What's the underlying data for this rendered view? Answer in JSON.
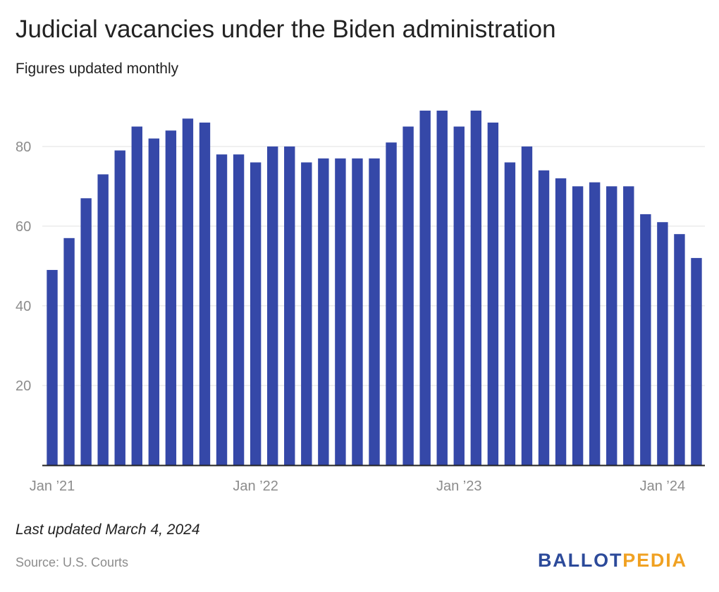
{
  "header": {
    "title": "Judicial vacancies under the Biden administration",
    "subtitle": "Figures updated monthly"
  },
  "footer": {
    "updated": "Last updated March 4, 2024",
    "source": "Source: U.S. Courts",
    "logo_part1": "BALLOT",
    "logo_part2": "PEDIA"
  },
  "colors": {
    "bar": "#3548a8",
    "grid": "#e2e2e2",
    "axis": "#222222",
    "tick_text": "#8c8c8c",
    "logo_blue": "#2c4a9a",
    "logo_gold": "#f0a122"
  },
  "chart_data": {
    "type": "bar",
    "title": "Judicial vacancies under the Biden administration",
    "subtitle": "Figures updated monthly",
    "x_tick_labels": [
      {
        "index": 0,
        "label": "Jan ’21"
      },
      {
        "index": 12,
        "label": "Jan ’22"
      },
      {
        "index": 24,
        "label": "Jan ’23"
      },
      {
        "index": 36,
        "label": "Jan ’24"
      }
    ],
    "y_ticks": [
      20,
      40,
      60,
      80
    ],
    "ylim": [
      0,
      92
    ],
    "grid": true,
    "categories": [
      "2021-01",
      "2021-02",
      "2021-03",
      "2021-04",
      "2021-05",
      "2021-06",
      "2021-07",
      "2021-08",
      "2021-09",
      "2021-10",
      "2021-11",
      "2021-12",
      "2022-01",
      "2022-02",
      "2022-03",
      "2022-04",
      "2022-05",
      "2022-06",
      "2022-07",
      "2022-08",
      "2022-09",
      "2022-10",
      "2022-11",
      "2022-12",
      "2023-01",
      "2023-02",
      "2023-03",
      "2023-04",
      "2023-05",
      "2023-06",
      "2023-07",
      "2023-08",
      "2023-09",
      "2023-10",
      "2023-11",
      "2023-12",
      "2024-01",
      "2024-02",
      "2024-03"
    ],
    "values": [
      49,
      57,
      67,
      73,
      79,
      85,
      82,
      84,
      87,
      86,
      78,
      78,
      76,
      80,
      80,
      76,
      77,
      77,
      77,
      77,
      81,
      85,
      89,
      89,
      85,
      89,
      86,
      76,
      80,
      74,
      72,
      70,
      71,
      70,
      70,
      63,
      61,
      58,
      52
    ]
  }
}
